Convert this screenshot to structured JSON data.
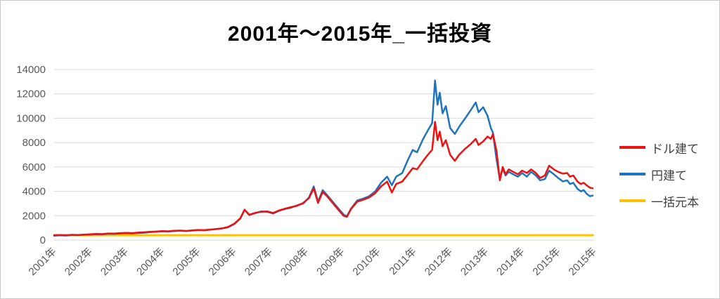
{
  "chart_data": {
    "type": "line",
    "title": "2001年〜2015年_一括投資",
    "xlabel": "",
    "ylabel": "",
    "xlim": [
      2001,
      2016
    ],
    "ylim": [
      0,
      14000
    ],
    "grid": "horizontal",
    "legend_position": "right",
    "y_ticks": [
      0,
      2000,
      4000,
      6000,
      8000,
      10000,
      12000,
      14000
    ],
    "x_tick_labels": [
      "2001年",
      "2002年",
      "2003年",
      "2004年",
      "2005年",
      "2006年",
      "2007年",
      "2008年",
      "2009年",
      "2010年",
      "2011年",
      "2012年",
      "2013年",
      "2014年",
      "2015年",
      "2015年"
    ],
    "colors": {
      "dollar": "#ee1111",
      "yen": "#1f74be",
      "principal": "#ffc000",
      "gridline": "#d9d9d9",
      "tick_label": "#595959"
    },
    "x": [
      2001.0,
      2001.17,
      2001.33,
      2001.5,
      2001.67,
      2001.83,
      2002.0,
      2002.17,
      2002.33,
      2002.5,
      2002.67,
      2002.83,
      2003.0,
      2003.17,
      2003.33,
      2003.5,
      2003.67,
      2003.83,
      2004.0,
      2004.17,
      2004.33,
      2004.5,
      2004.67,
      2004.83,
      2005.0,
      2005.17,
      2005.33,
      2005.5,
      2005.67,
      2005.83,
      2006.0,
      2006.17,
      2006.29,
      2006.42,
      2006.58,
      2006.75,
      2006.92,
      2007.08,
      2007.25,
      2007.42,
      2007.58,
      2007.75,
      2007.92,
      2008.08,
      2008.21,
      2008.33,
      2008.46,
      2008.58,
      2008.75,
      2008.92,
      2009.04,
      2009.13,
      2009.25,
      2009.42,
      2009.58,
      2009.75,
      2009.92,
      2010.08,
      2010.25,
      2010.38,
      2010.5,
      2010.67,
      2010.83,
      2010.96,
      2011.08,
      2011.25,
      2011.38,
      2011.5,
      2011.58,
      2011.65,
      2011.71,
      2011.79,
      2011.88,
      2012.0,
      2012.13,
      2012.25,
      2012.42,
      2012.58,
      2012.71,
      2012.79,
      2012.92,
      2013.04,
      2013.13,
      2013.19,
      2013.29,
      2013.38,
      2013.46,
      2013.54,
      2013.63,
      2013.75,
      2013.88,
      2014.0,
      2014.13,
      2014.25,
      2014.38,
      2014.5,
      2014.63,
      2014.75,
      2014.88,
      2015.0,
      2015.13,
      2015.25,
      2015.33,
      2015.42,
      2015.54,
      2015.63,
      2015.71,
      2015.79,
      2015.88,
      2015.96
    ],
    "series": [
      {
        "id": "dollar",
        "name": "ドル建て",
        "color": "#ee1111",
        "width": 2.5,
        "values": [
          400,
          420,
          400,
          430,
          420,
          450,
          470,
          500,
          490,
          540,
          530,
          570,
          590,
          570,
          610,
          640,
          680,
          700,
          740,
          720,
          760,
          780,
          750,
          790,
          830,
          810,
          860,
          900,
          960,
          1070,
          1330,
          1780,
          2480,
          2080,
          2230,
          2320,
          2350,
          2220,
          2430,
          2580,
          2700,
          2820,
          3050,
          3450,
          4250,
          3050,
          3950,
          3600,
          3000,
          2400,
          2000,
          1900,
          2550,
          3150,
          3300,
          3500,
          3850,
          4400,
          4800,
          3900,
          4600,
          4800,
          5400,
          5900,
          5800,
          6500,
          7000,
          7400,
          9700,
          8200,
          8900,
          7700,
          8200,
          7000,
          6500,
          7000,
          7500,
          7900,
          8300,
          7800,
          8100,
          8500,
          8300,
          8700,
          7300,
          4900,
          6000,
          5400,
          5800,
          5600,
          5400,
          5700,
          5500,
          5800,
          5500,
          5100,
          5300,
          6100,
          5800,
          5600,
          5450,
          5500,
          5200,
          5300,
          4800,
          4600,
          4700,
          4500,
          4300,
          4250
        ]
      },
      {
        "id": "yen",
        "name": "円建て",
        "color": "#1f74be",
        "width": 2.5,
        "values": [
          350,
          390,
          370,
          410,
          400,
          430,
          450,
          480,
          460,
          520,
          500,
          540,
          560,
          540,
          580,
          600,
          650,
          680,
          720,
          700,
          740,
          760,
          740,
          780,
          820,
          800,
          850,
          900,
          950,
          1050,
          1300,
          1750,
          2500,
          2050,
          2200,
          2350,
          2320,
          2180,
          2400,
          2550,
          2650,
          2850,
          3000,
          3500,
          4400,
          3150,
          4100,
          3700,
          3100,
          2500,
          2100,
          1950,
          2600,
          3250,
          3400,
          3600,
          4000,
          4700,
          5200,
          4500,
          5200,
          5500,
          6600,
          7400,
          7200,
          8300,
          9000,
          9600,
          13100,
          11100,
          12100,
          10400,
          11000,
          9200,
          8700,
          9300,
          10000,
          10700,
          11300,
          10500,
          10900,
          10200,
          9200,
          8800,
          6600,
          5000,
          5900,
          5300,
          5600,
          5400,
          5200,
          5500,
          5200,
          5600,
          5300,
          4900,
          5000,
          5700,
          5400,
          5100,
          4810,
          4900,
          4600,
          4700,
          4200,
          4000,
          4100,
          3800,
          3600,
          3650
        ]
      },
      {
        "id": "principal",
        "name": "一括元本",
        "color": "#ffc000",
        "width": 3,
        "x": [
          2001.0,
          2015.96
        ],
        "values": [
          400,
          400
        ]
      }
    ]
  }
}
